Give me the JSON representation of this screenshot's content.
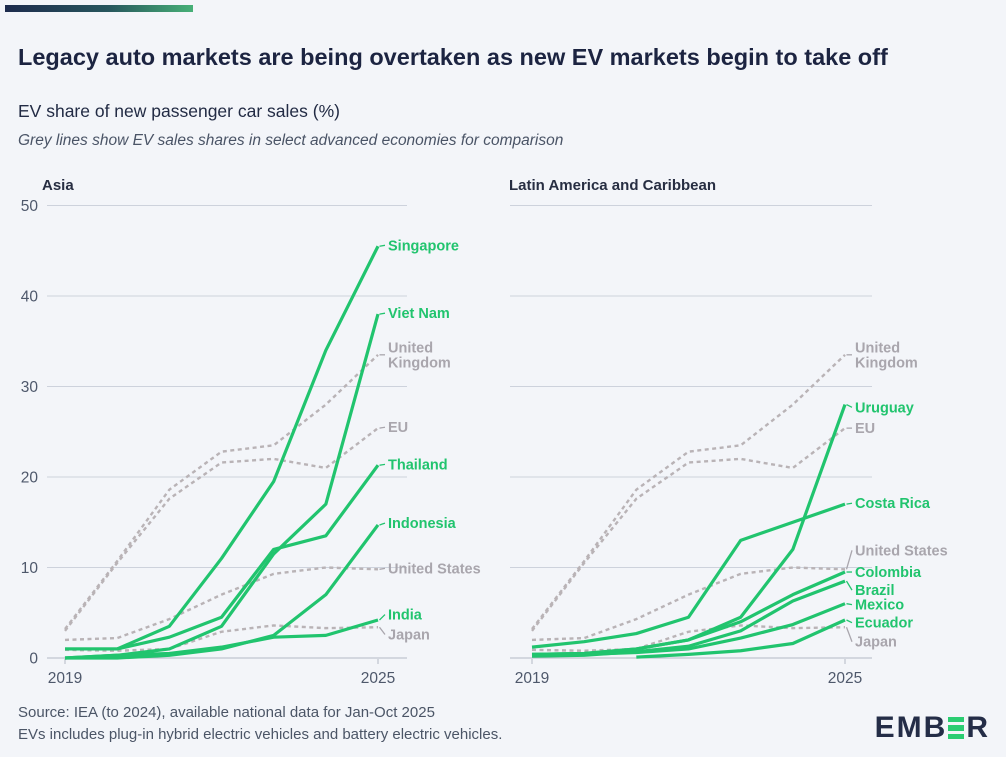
{
  "header": {
    "title": "Legacy auto markets are being overtaken as new EV markets begin to take off",
    "subtitle": "EV share of new passenger car sales (%)",
    "note": "Grey lines show EV sales shares in select advanced economies for comparison"
  },
  "footer": {
    "source_line1": "Source: IEA (to 2024), available national data for Jan-Oct 2025",
    "source_line2": "EVs includes plug-in hybrid electric vehicles and battery electric vehicles.",
    "logo_pre": "EMB",
    "logo_post": "R"
  },
  "colors": {
    "green": "#21c46e",
    "grey_line": "#b9b3b6",
    "grey_label": "#a9a6ad",
    "grid": "#cdd2dc",
    "axis": "#b3b9c5",
    "tick_text": "#4e586b",
    "panel_title": "#272e42",
    "background": "#f3f5f9",
    "navy": "#1c2441",
    "logo_green": "#2bcd72"
  },
  "chart_data": [
    {
      "type": "line",
      "title": "Asia",
      "x": [
        2019,
        2020,
        2021,
        2022,
        2023,
        2024,
        2025
      ],
      "xticks": [
        2019,
        2025
      ],
      "yticks": [
        0,
        10,
        20,
        30,
        40,
        50
      ],
      "ylim": [
        0,
        50
      ],
      "legend_position": "line-end-labels",
      "grid": true,
      "series": [
        {
          "name": "United Kingdom",
          "role": "comparison",
          "color": "grey",
          "label_lines": [
            "United",
            "Kingdom"
          ],
          "label_y": 33.5,
          "values": [
            3.2,
            10.7,
            18.6,
            22.8,
            23.5,
            28,
            33.5
          ]
        },
        {
          "name": "EU",
          "role": "comparison",
          "color": "grey",
          "label_y": 25.5,
          "values": [
            3,
            10.5,
            17.6,
            21.6,
            22,
            21,
            25.4
          ]
        },
        {
          "name": "United States",
          "role": "comparison",
          "color": "grey",
          "label_y": 9.9,
          "values": [
            2,
            2.2,
            4.3,
            7,
            9.3,
            10,
            9.8
          ]
        },
        {
          "name": "Japan",
          "role": "comparison",
          "color": "grey",
          "label_y": 2.6,
          "values": [
            0.9,
            0.8,
            1,
            2.9,
            3.6,
            3.3,
            3.4
          ]
        },
        {
          "name": "Singapore",
          "role": "main",
          "color": "green",
          "label_y": 45.6,
          "values": [
            1,
            1,
            3.5,
            11,
            19.5,
            34,
            45.5
          ]
        },
        {
          "name": "Viet Nam",
          "role": "main",
          "color": "green",
          "label_y": 38.1,
          "values": [
            0,
            0.3,
            1,
            3.5,
            11.5,
            17,
            38
          ]
        },
        {
          "name": "Thailand",
          "role": "main",
          "color": "green",
          "label_y": 21.4,
          "values": [
            1,
            1,
            2.3,
            4.5,
            12,
            13.5,
            21.3
          ]
        },
        {
          "name": "Indonesia",
          "role": "main",
          "color": "green",
          "label_y": 14.9,
          "values": [
            0,
            0,
            0.3,
            1,
            2.5,
            7,
            14.7
          ]
        },
        {
          "name": "India",
          "role": "main",
          "color": "green",
          "label_y": 4.8,
          "values": [
            0,
            0.3,
            0.5,
            1.2,
            2.3,
            2.5,
            4.2
          ]
        }
      ]
    },
    {
      "type": "line",
      "title": "Latin America and Caribbean",
      "x": [
        2019,
        2020,
        2021,
        2022,
        2023,
        2024,
        2025
      ],
      "xticks": [
        2019,
        2025
      ],
      "yticks": [
        0,
        10,
        20,
        30,
        40,
        50
      ],
      "ylim": [
        0,
        50
      ],
      "legend_position": "line-end-labels",
      "grid": true,
      "series": [
        {
          "name": "United Kingdom",
          "role": "comparison",
          "color": "grey",
          "label_lines": [
            "United",
            "Kingdom"
          ],
          "label_y": 33.5,
          "values": [
            3.2,
            10.7,
            18.6,
            22.8,
            23.5,
            28,
            33.5
          ]
        },
        {
          "name": "EU",
          "role": "comparison",
          "color": "grey",
          "label_y": 25.4,
          "values": [
            3,
            10.5,
            17.6,
            21.6,
            22,
            21,
            25.4
          ]
        },
        {
          "name": "United States",
          "role": "comparison",
          "color": "grey",
          "label_y": 11.9,
          "values": [
            2,
            2.2,
            4.3,
            7,
            9.3,
            10,
            9.8
          ]
        },
        {
          "name": "Japan",
          "role": "comparison",
          "color": "grey",
          "label_y": 1.8,
          "values": [
            0.9,
            0.8,
            1,
            2.9,
            3.6,
            3.3,
            3.4
          ]
        },
        {
          "name": "Uruguay",
          "role": "main",
          "color": "green",
          "label_y": 27.7,
          "values": [
            0.4,
            0.5,
            1,
            2,
            4.5,
            12,
            28
          ]
        },
        {
          "name": "Costa Rica",
          "role": "main",
          "color": "green",
          "label_y": 17.1,
          "values": [
            1.2,
            1.8,
            2.7,
            4.5,
            13,
            15,
            17
          ]
        },
        {
          "name": "Colombia",
          "role": "main",
          "color": "green",
          "label_y": 9.5,
          "values": [
            0.4,
            0.5,
            1,
            2,
            4,
            7,
            9.5
          ]
        },
        {
          "name": "Brazil",
          "role": "main",
          "color": "green",
          "label_y": 7.5,
          "values": [
            0.2,
            0.3,
            0.7,
            1.3,
            3,
            6.3,
            8.5
          ]
        },
        {
          "name": "Mexico",
          "role": "main",
          "color": "green",
          "label_y": 5.9,
          "values": [
            0.3,
            0.4,
            0.6,
            1,
            2.2,
            3.7,
            6
          ]
        },
        {
          "name": "Ecuador",
          "role": "main",
          "color": "green",
          "label_y": 3.9,
          "values": [
            null,
            null,
            0.1,
            0.4,
            0.8,
            1.6,
            4.2
          ]
        }
      ]
    }
  ]
}
